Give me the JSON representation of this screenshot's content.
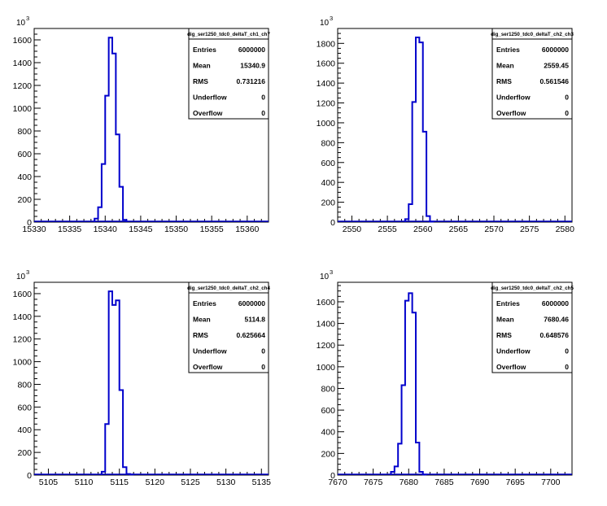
{
  "exp_label": "10",
  "exp_power": "3",
  "stats_labels": {
    "entries": "Entries",
    "mean": "Mean",
    "rms": "RMS",
    "underflow": "Underflow",
    "overflow": "Overflow"
  },
  "colors": {
    "line": "#0000cc",
    "axis": "#000000",
    "box_border": "#000000"
  },
  "chart_data": [
    {
      "type": "histogram",
      "title": "dig_ser1250_tdc0_deltaT_ch1_ch7",
      "xlim": [
        15330,
        15363
      ],
      "ylim": [
        0,
        1700
      ],
      "xticks": [
        15330,
        15335,
        15340,
        15345,
        15350,
        15355,
        15360
      ],
      "yticks": [
        0,
        200,
        400,
        600,
        800,
        1000,
        1200,
        1400,
        1600
      ],
      "bin_width": 0.5,
      "bin_centers": [
        15338.75,
        15339.25,
        15339.75,
        15340.25,
        15340.75,
        15341.25,
        15341.75,
        15342.25,
        15342.75
      ],
      "counts": [
        30,
        130,
        510,
        1110,
        1620,
        1480,
        770,
        310,
        20
      ],
      "stats": {
        "entries": "6000000",
        "mean": "15340.9",
        "rms": "0.731216",
        "underflow": "0",
        "overflow": "0"
      }
    },
    {
      "type": "histogram",
      "title": "dig_ser1250_tdc0_deltaT_ch2_ch3",
      "xlim": [
        2548,
        2581
      ],
      "ylim": [
        0,
        1950
      ],
      "xticks": [
        2550,
        2555,
        2560,
        2565,
        2570,
        2575,
        2580
      ],
      "yticks": [
        0,
        200,
        400,
        600,
        800,
        1000,
        1200,
        1400,
        1600,
        1800
      ],
      "bin_width": 0.5,
      "bin_centers": [
        2557.75,
        2558.25,
        2558.75,
        2559.25,
        2559.75,
        2560.25,
        2560.75,
        2561.25
      ],
      "counts": [
        30,
        180,
        1210,
        1860,
        1810,
        910,
        60,
        5
      ],
      "stats": {
        "entries": "6000000",
        "mean": "2559.45",
        "rms": "0.561546",
        "underflow": "0",
        "overflow": "0"
      }
    },
    {
      "type": "histogram",
      "title": "dig_ser1250_tdc0_deltaT_ch2_ch4",
      "xlim": [
        5103,
        5136
      ],
      "ylim": [
        0,
        1700
      ],
      "xticks": [
        5105,
        5110,
        5115,
        5120,
        5125,
        5130,
        5135
      ],
      "yticks": [
        0,
        200,
        400,
        600,
        800,
        1000,
        1200,
        1400,
        1600
      ],
      "bin_width": 0.5,
      "bin_centers": [
        5112.75,
        5113.25,
        5113.75,
        5114.25,
        5114.75,
        5115.25,
        5115.75,
        5116.25,
        5116.75
      ],
      "counts": [
        30,
        450,
        1620,
        1500,
        1540,
        750,
        70,
        10,
        5
      ],
      "stats": {
        "entries": "6000000",
        "mean": "5114.8",
        "rms": "0.625664",
        "underflow": "0",
        "overflow": "0"
      }
    },
    {
      "type": "histogram",
      "title": "dig_ser1250_tdc0_deltaT_ch2_ch5",
      "xlim": [
        7670,
        7703
      ],
      "ylim": [
        0,
        1780
      ],
      "xticks": [
        7670,
        7675,
        7680,
        7685,
        7690,
        7695,
        7700
      ],
      "yticks": [
        0,
        200,
        400,
        600,
        800,
        1000,
        1200,
        1400,
        1600
      ],
      "bin_width": 0.5,
      "bin_centers": [
        7677.75,
        7678.25,
        7678.75,
        7679.25,
        7679.75,
        7680.25,
        7680.75,
        7681.25,
        7681.75,
        7682.25
      ],
      "counts": [
        30,
        80,
        290,
        830,
        1610,
        1680,
        1500,
        300,
        30,
        5
      ],
      "stats": {
        "entries": "6000000",
        "mean": "7680.46",
        "rms": "0.648576",
        "underflow": "0",
        "overflow": "0"
      }
    }
  ]
}
